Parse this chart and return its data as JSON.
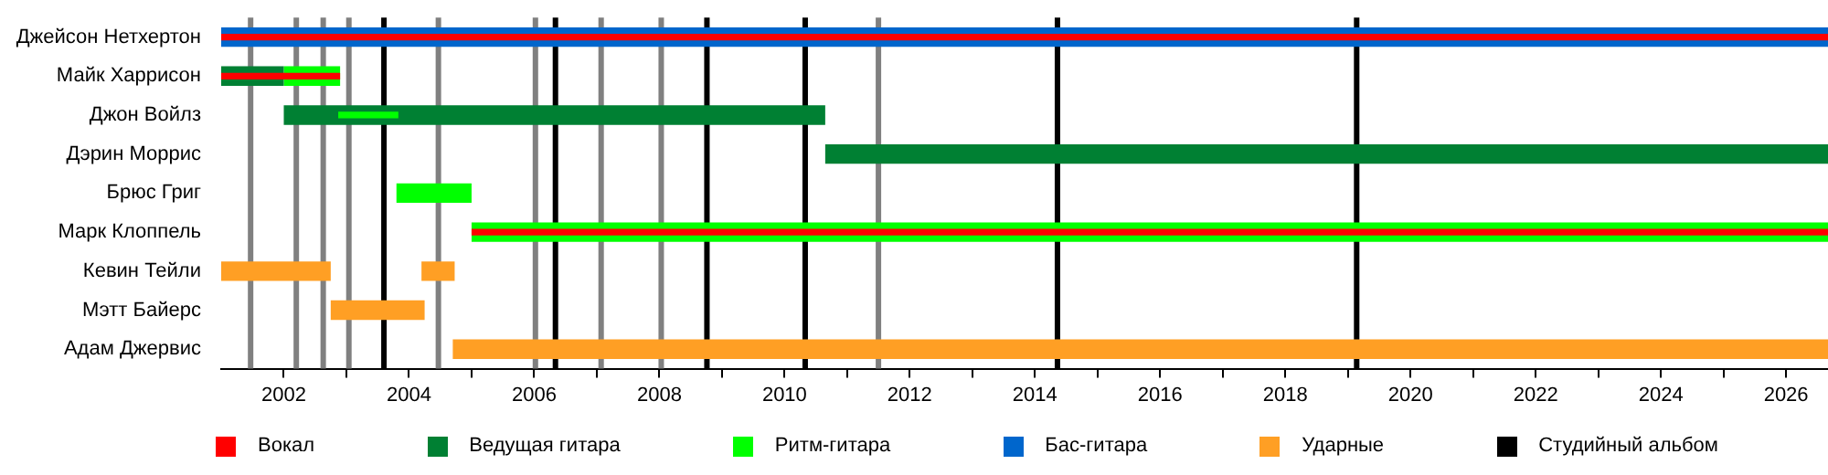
{
  "chart_data": {
    "type": "bar",
    "orientation": "horizontal",
    "legend": "bottom",
    "categories": [
      "Джейсон Нетхертон",
      "Майк Харрисон",
      "Джон Войлз",
      "Дэрин Моррис",
      "Брюс Григ",
      "Марк Клоппель",
      "Кевин Тейли",
      "Мэтт Байерс",
      "Адам Джервис"
    ],
    "series": [
      {
        "name": "Вокал",
        "color": "#ff0000",
        "values": [
          25.67,
          1.9,
          null,
          null,
          null,
          21.67,
          null,
          null,
          null
        ],
        "base": [
          2001,
          2001,
          null,
          null,
          null,
          2005,
          null,
          null,
          null
        ]
      },
      {
        "name": "Ведущая гитара",
        "color": "#008033",
        "values": [
          null,
          1,
          8.65,
          16.02,
          null,
          null,
          null,
          null,
          null
        ],
        "base": [
          null,
          2001,
          2002,
          2010.65,
          null,
          null,
          null,
          null,
          null
        ]
      },
      {
        "name": "Ритм-гитара",
        "color": "#00ff00",
        "values": [
          null,
          0.9,
          0.96,
          null,
          1.2,
          21.67,
          null,
          null,
          null
        ],
        "base": [
          null,
          2002,
          2002.87,
          null,
          2003.8,
          2005,
          null,
          null,
          null
        ]
      },
      {
        "name": "Бас-гитара",
        "color": "#0066cc",
        "values": [
          25.67,
          null,
          null,
          null,
          null,
          null,
          null,
          null,
          null
        ],
        "base": [
          2001,
          null,
          null,
          null,
          null,
          null,
          null,
          null,
          null
        ]
      },
      {
        "name": "Ударные",
        "color": "#ff9f24",
        "values": [
          null,
          null,
          null,
          null,
          null,
          null,
          1.75,
          1.5,
          21.97
        ],
        "base": [
          null,
          null,
          null,
          null,
          null,
          null,
          2001,
          2002.75,
          2004.7
        ]
      },
      {
        "color": "#ff9f24",
        "values": [
          null,
          null,
          null,
          null,
          null,
          null,
          0.53,
          null,
          null
        ],
        "base": [
          null,
          null,
          null,
          null,
          null,
          null,
          2004.2,
          null,
          null
        ]
      }
    ],
    "xlim": [
      2001,
      2026.67
    ],
    "xticks": [
      2002,
      {
        "value": 2003,
        "label": null
      },
      2004,
      {
        "value": 2005,
        "label": null
      },
      2006,
      {
        "value": 2007,
        "label": null
      },
      2008,
      {
        "value": 2009,
        "label": null
      },
      2010,
      {
        "value": 2011,
        "label": null
      },
      2012,
      {
        "value": 2013,
        "label": null
      },
      2014,
      {
        "value": 2015,
        "label": null
      },
      2016,
      {
        "value": 2017,
        "label": null
      },
      2018,
      {
        "value": 2019,
        "label": null
      },
      2020,
      {
        "value": 2021,
        "label": null
      },
      2022,
      {
        "value": 2023,
        "label": null
      },
      2024,
      {
        "value": 2025,
        "label": null
      },
      2026
    ],
    "ref_lines": [
      {
        "axis": "x",
        "value": 2001.47,
        "color": "#808080"
      },
      {
        "axis": "x",
        "value": 2002.2,
        "color": "#808080"
      },
      {
        "axis": "x",
        "value": 2002.63,
        "color": "#808080"
      },
      {
        "axis": "x",
        "value": 2003.04,
        "color": "#808080"
      },
      {
        "axis": "x",
        "value": 2004.47,
        "color": "#808080"
      },
      {
        "axis": "x",
        "value": 2006.02,
        "color": "#808080"
      },
      {
        "axis": "x",
        "value": 2007.07,
        "color": "#808080"
      },
      {
        "axis": "x",
        "value": 2008.03,
        "color": "#808080"
      },
      {
        "axis": "x",
        "value": 2011.5,
        "color": "#808080"
      },
      {
        "axis": "x",
        "value": 2003.6,
        "color": "#000000",
        "label": "Студийный альбом"
      },
      {
        "axis": "x",
        "value": 2006.34,
        "color": "#000000"
      },
      {
        "axis": "x",
        "value": 2008.76,
        "color": "#000000"
      },
      {
        "axis": "x",
        "value": 2010.33,
        "color": "#000000"
      },
      {
        "axis": "x",
        "value": 2014.36,
        "color": "#000000"
      },
      {
        "axis": "x",
        "value": 2019.14,
        "color": "#000000"
      }
    ]
  }
}
